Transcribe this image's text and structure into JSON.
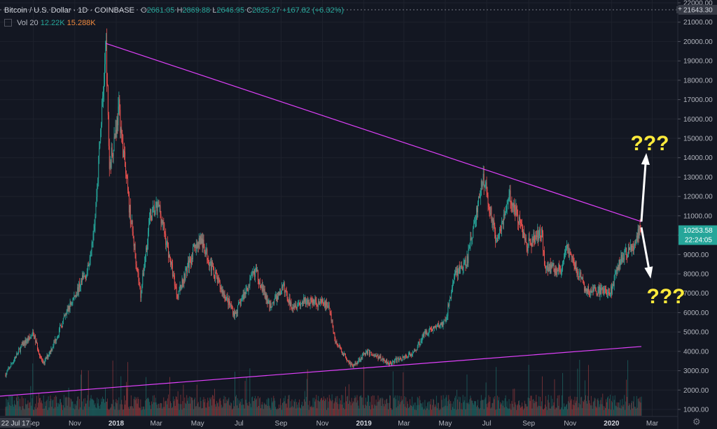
{
  "legend": {
    "symbol": "Bitcoin / U.S. Dollar",
    "interval": "1D",
    "exchange": "COINBASE",
    "o_label": "O",
    "o": "2661.05",
    "h_label": "H",
    "h": "2869.88",
    "l_label": "L",
    "l": "2646.95",
    "c_label": "C",
    "c": "2825.27",
    "change": "+167.82 (+6.32%)"
  },
  "volume": {
    "label": "Vol 20",
    "value1": "12.22K",
    "value2": "15.288K"
  },
  "annotations": {
    "up_question": "???",
    "down_question": "???"
  },
  "icons": {
    "scale_toggle": "plus-icon",
    "settings": "gear-icon"
  },
  "colors": {
    "background": "#131722",
    "up": "#26a69a",
    "down": "#ef5350",
    "trendline": "#e040fb",
    "annotation": "#ffeb3b",
    "arrow": "#ffffff"
  },
  "chart_data": {
    "type": "candlestick",
    "y_ticks": [
      "1000.00",
      "2000.00",
      "3000.00",
      "4000.00",
      "5000.00",
      "6000.00",
      "7000.00",
      "8000.00",
      "9000.00",
      "10000.00",
      "11000.00",
      "12000.00",
      "13000.00",
      "14000.00",
      "15000.00",
      "16000.00",
      "17000.00",
      "18000.00",
      "19000.00",
      "20000.00",
      "21000.00",
      "22000.00"
    ],
    "ylim": [
      1000,
      22000
    ],
    "x_ticks": [
      "Sep",
      "Nov",
      "2018",
      "Mar",
      "May",
      "Jul",
      "Sep",
      "Nov",
      "2019",
      "Mar",
      "May",
      "Jul",
      "Sep",
      "Nov",
      "2020",
      "Mar"
    ],
    "crosshair_date": "22 Jul 17",
    "price_labels": {
      "top": "21643.30",
      "last": "10253.58",
      "countdown": "22:24:05"
    },
    "price_path": [
      [
        "2017-07-22",
        2800
      ],
      [
        "2017-08-15",
        4300
      ],
      [
        "2017-09-01",
        4900
      ],
      [
        "2017-09-15",
        3300
      ],
      [
        "2017-10-01",
        4400
      ],
      [
        "2017-10-20",
        6000
      ],
      [
        "2017-11-08",
        7400
      ],
      [
        "2017-11-20",
        8200
      ],
      [
        "2017-12-01",
        11000
      ],
      [
        "2017-12-10",
        16000
      ],
      [
        "2017-12-17",
        19700
      ],
      [
        "2017-12-22",
        13500
      ],
      [
        "2018-01-05",
        16500
      ],
      [
        "2018-01-20",
        11500
      ],
      [
        "2018-02-06",
        6900
      ],
      [
        "2018-02-20",
        11000
      ],
      [
        "2018-03-05",
        11500
      ],
      [
        "2018-04-01",
        6900
      ],
      [
        "2018-04-25",
        9200
      ],
      [
        "2018-05-05",
        9800
      ],
      [
        "2018-06-01",
        7500
      ],
      [
        "2018-06-25",
        5900
      ],
      [
        "2018-07-25",
        8200
      ],
      [
        "2018-08-15",
        6300
      ],
      [
        "2018-09-05",
        7300
      ],
      [
        "2018-09-15",
        6400
      ],
      [
        "2018-10-15",
        6600
      ],
      [
        "2018-11-10",
        6400
      ],
      [
        "2018-11-20",
        4500
      ],
      [
        "2018-12-15",
        3200
      ],
      [
        "2019-01-05",
        4000
      ],
      [
        "2019-02-08",
        3400
      ],
      [
        "2019-03-15",
        3900
      ],
      [
        "2019-04-02",
        5000
      ],
      [
        "2019-05-01",
        5500
      ],
      [
        "2019-05-15",
        8000
      ],
      [
        "2019-06-01",
        8500
      ],
      [
        "2019-06-26",
        13000
      ],
      [
        "2019-07-15",
        9800
      ],
      [
        "2019-08-05",
        12000
      ],
      [
        "2019-08-30",
        9500
      ],
      [
        "2019-09-20",
        10200
      ],
      [
        "2019-09-25",
        8400
      ],
      [
        "2019-10-20",
        8200
      ],
      [
        "2019-10-27",
        9400
      ],
      [
        "2019-11-25",
        7100
      ],
      [
        "2019-12-15",
        7100
      ],
      [
        "2020-01-01",
        7200
      ],
      [
        "2020-01-15",
        8800
      ],
      [
        "2020-02-01",
        9400
      ],
      [
        "2020-02-13",
        10300
      ]
    ],
    "trendlines": [
      {
        "from": [
          "2017-12-17",
          19900
        ],
        "to": [
          "2020-02-14",
          10700
        ]
      },
      {
        "from": [
          "2017-07-01",
          1650
        ],
        "to": [
          "2020-02-14",
          4250
        ]
      }
    ],
    "arrows": [
      {
        "from": [
          "2020-02-14",
          10700
        ],
        "to": [
          "2020-02-21",
          14100
        ]
      },
      {
        "from": [
          "2020-02-14",
          10400
        ],
        "to": [
          "2020-02-27",
          7900
        ]
      }
    ]
  }
}
